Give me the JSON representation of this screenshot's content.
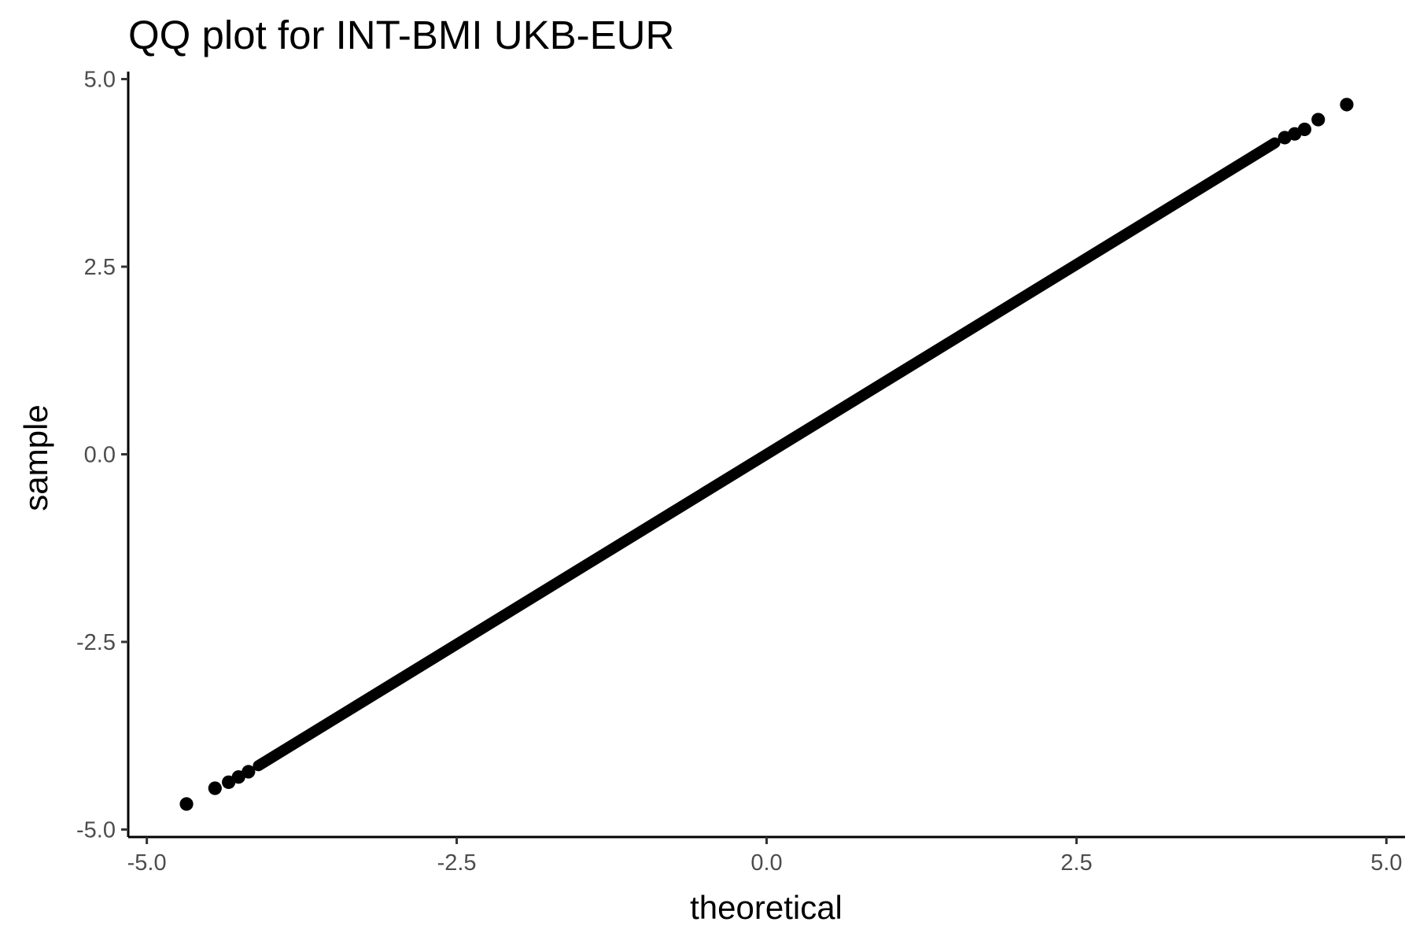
{
  "chart_data": {
    "type": "scatter",
    "title": "QQ plot for INT-BMI UKB-EUR",
    "xlabel": "theoretical",
    "ylabel": "sample",
    "xlim": [
      -5.15,
      5.15
    ],
    "ylim": [
      -5.1,
      5.1
    ],
    "x_ticks": [
      -5.0,
      -2.5,
      0.0,
      2.5,
      5.0
    ],
    "x_tick_labels": [
      "-5.0",
      "-2.5",
      "0.0",
      "2.5",
      "5.0"
    ],
    "y_ticks": [
      -5.0,
      -2.5,
      0.0,
      2.5,
      5.0
    ],
    "y_tick_labels": [
      "-5.0",
      "-2.5",
      "0.0",
      "2.5",
      "5.0"
    ],
    "grid": false,
    "legend": "none",
    "point_color": "#000000",
    "dense_band": {
      "x_start": -4.1,
      "y_start": -4.15,
      "x_end": 4.1,
      "y_end": 4.15
    },
    "tail_points": [
      {
        "x": -4.68,
        "y": -4.66
      },
      {
        "x": -4.45,
        "y": -4.45
      },
      {
        "x": -4.34,
        "y": -4.37
      },
      {
        "x": -4.26,
        "y": -4.3
      },
      {
        "x": -4.18,
        "y": -4.23
      },
      {
        "x": 4.18,
        "y": 4.22
      },
      {
        "x": 4.26,
        "y": 4.27
      },
      {
        "x": 4.34,
        "y": 4.33
      },
      {
        "x": 4.45,
        "y": 4.46
      },
      {
        "x": 4.68,
        "y": 4.66
      }
    ]
  }
}
